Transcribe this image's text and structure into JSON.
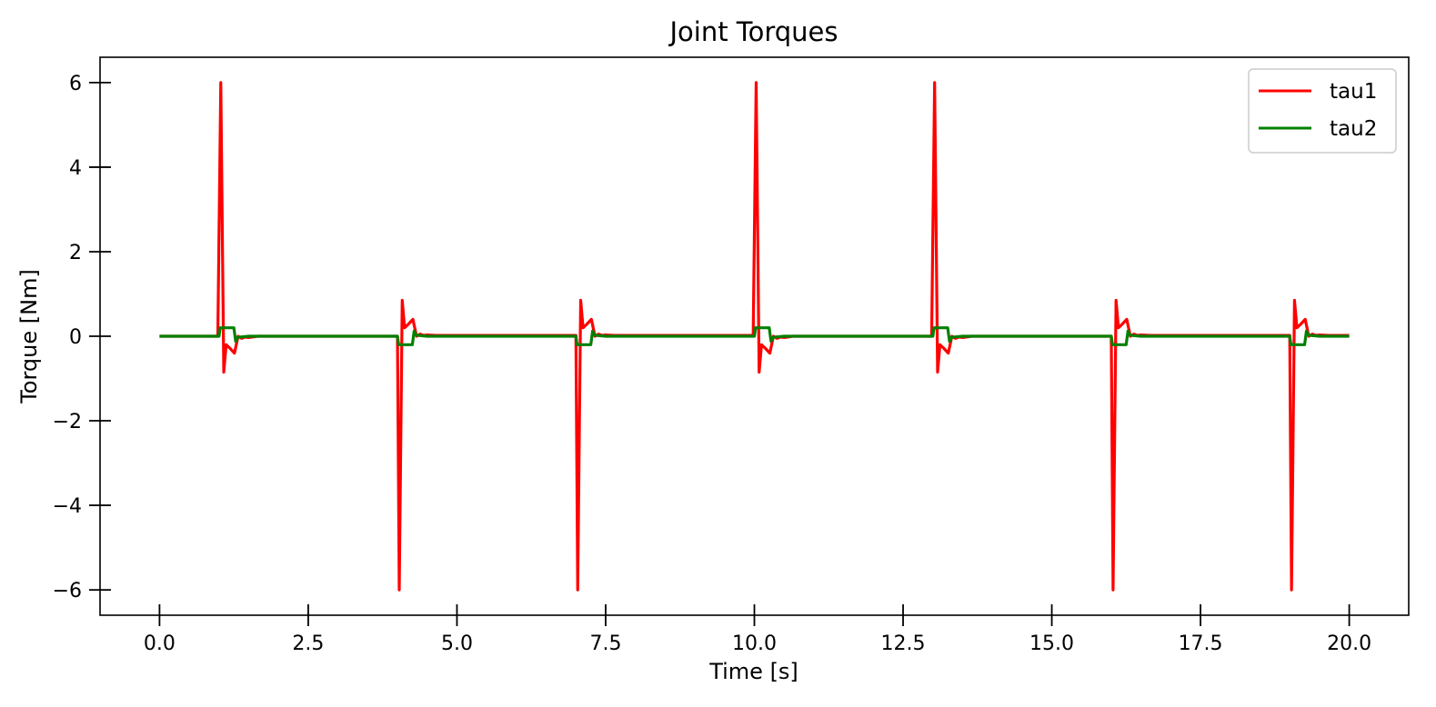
{
  "chart_data": {
    "type": "line",
    "title": "Joint Torques",
    "xlabel": "Time [s]",
    "ylabel": "Torque [Nm]",
    "xlim": [
      -1.0,
      21.0
    ],
    "ylim": [
      -6.6,
      6.6
    ],
    "x_ticks": [
      0.0,
      2.5,
      5.0,
      7.5,
      10.0,
      12.5,
      15.0,
      17.5,
      20.0
    ],
    "x_tick_labels": [
      "0.0",
      "2.5",
      "5.0",
      "7.5",
      "10.0",
      "12.5",
      "15.0",
      "17.5",
      "20.0"
    ],
    "y_ticks": [
      -6,
      -4,
      -2,
      0,
      2,
      4,
      6
    ],
    "y_tick_labels": [
      "−6",
      "−4",
      "−2",
      "0",
      "2",
      "4",
      "6"
    ],
    "grid": false,
    "legend_position": "top-right",
    "series": [
      {
        "name": "tau1",
        "color": "#ff0000",
        "x": [
          0.0,
          0.98,
          1.03,
          1.08,
          1.12,
          1.18,
          1.26,
          1.32,
          1.38,
          1.44,
          1.5,
          1.65,
          4.0,
          4.03,
          4.08,
          4.12,
          4.18,
          4.26,
          4.32,
          4.38,
          4.44,
          4.5,
          4.65,
          7.0,
          7.03,
          7.08,
          7.12,
          7.18,
          7.26,
          7.32,
          7.38,
          7.44,
          7.5,
          7.65,
          9.98,
          10.03,
          10.08,
          10.12,
          10.18,
          10.26,
          10.32,
          10.38,
          10.44,
          10.5,
          10.65,
          12.98,
          13.03,
          13.08,
          13.12,
          13.18,
          13.26,
          13.32,
          13.38,
          13.44,
          13.5,
          13.65,
          16.0,
          16.03,
          16.08,
          16.12,
          16.18,
          16.26,
          16.32,
          16.38,
          16.44,
          16.5,
          16.65,
          19.0,
          19.03,
          19.08,
          19.12,
          19.18,
          19.26,
          19.32,
          19.38,
          19.44,
          19.5,
          19.65,
          20.0
        ],
        "y": [
          0.0,
          0.0,
          6.0,
          -0.85,
          -0.2,
          -0.28,
          -0.4,
          0.0,
          -0.05,
          -0.02,
          -0.03,
          0.0,
          0.0,
          -6.0,
          0.85,
          0.2,
          0.28,
          0.4,
          0.0,
          0.05,
          0.02,
          0.03,
          0.02,
          0.02,
          -6.0,
          0.85,
          0.2,
          0.28,
          0.4,
          0.0,
          0.05,
          0.02,
          0.03,
          0.02,
          0.02,
          6.0,
          -0.85,
          -0.2,
          -0.28,
          -0.4,
          0.0,
          -0.05,
          -0.02,
          -0.03,
          0.0,
          0.0,
          6.0,
          -0.85,
          -0.2,
          -0.28,
          -0.4,
          0.0,
          -0.05,
          -0.02,
          -0.03,
          0.0,
          0.0,
          -6.0,
          0.85,
          0.2,
          0.28,
          0.4,
          0.0,
          0.05,
          0.02,
          0.03,
          0.02,
          0.02,
          -6.0,
          0.85,
          0.2,
          0.28,
          0.4,
          0.0,
          0.05,
          0.02,
          0.03,
          0.02,
          0.02
        ]
      },
      {
        "name": "tau2",
        "color": "#008000",
        "x": [
          0.0,
          1.0,
          1.02,
          1.25,
          1.28,
          1.31,
          1.34,
          1.5,
          4.0,
          4.02,
          4.25,
          4.28,
          4.31,
          4.34,
          4.5,
          7.0,
          7.02,
          7.25,
          7.28,
          7.31,
          7.34,
          7.5,
          10.0,
          10.02,
          10.25,
          10.28,
          10.31,
          10.34,
          10.5,
          13.0,
          13.02,
          13.25,
          13.28,
          13.31,
          13.34,
          13.5,
          16.0,
          16.02,
          16.25,
          16.28,
          16.31,
          16.34,
          16.5,
          19.0,
          19.02,
          19.25,
          19.28,
          19.31,
          19.34,
          19.5,
          20.0
        ],
        "y": [
          0.0,
          0.0,
          0.2,
          0.2,
          -0.12,
          -0.03,
          -0.02,
          0.0,
          0.0,
          -0.2,
          -0.2,
          0.12,
          0.03,
          0.02,
          0.0,
          0.0,
          -0.2,
          -0.2,
          0.12,
          0.03,
          0.02,
          0.0,
          0.0,
          0.2,
          0.2,
          -0.12,
          -0.03,
          -0.02,
          0.0,
          0.0,
          0.2,
          0.2,
          -0.12,
          -0.03,
          -0.02,
          0.0,
          0.0,
          -0.2,
          -0.2,
          0.12,
          0.03,
          0.02,
          0.0,
          0.0,
          -0.2,
          -0.2,
          0.12,
          0.03,
          0.02,
          0.0,
          0.0
        ]
      }
    ]
  }
}
